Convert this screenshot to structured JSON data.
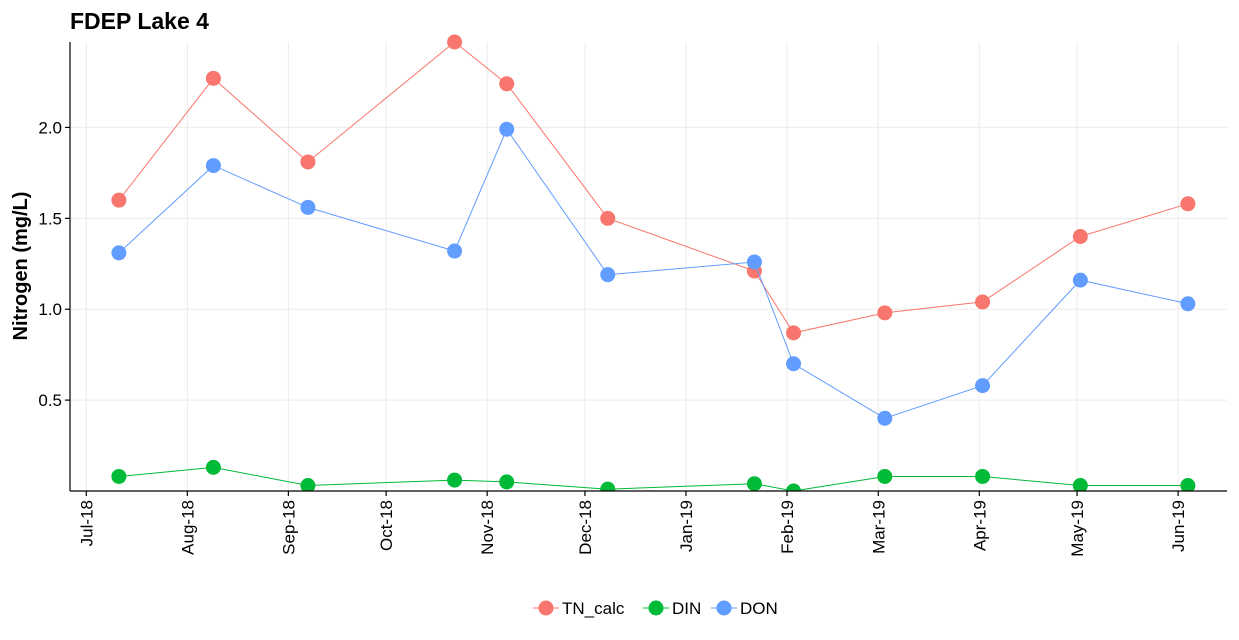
{
  "chart_data": {
    "type": "line",
    "title": "FDEP Lake 4",
    "xlabel": "",
    "ylabel": "Nitrogen (mg/L)",
    "x_tick_labels": [
      "Jul-18",
      "Aug-18",
      "Sep-18",
      "Oct-18",
      "Nov-18",
      "Dec-18",
      "Jan-19",
      "Feb-19",
      "Mar-19",
      "Apr-19",
      "May-19",
      "Jun-19"
    ],
    "x_tick_dates": [
      "2018-07-01",
      "2018-08-01",
      "2018-09-01",
      "2018-10-01",
      "2018-11-01",
      "2018-12-01",
      "2019-01-01",
      "2019-02-01",
      "2019-03-01",
      "2019-04-01",
      "2019-05-01",
      "2019-06-01"
    ],
    "y_ticks": [
      0.5,
      1.0,
      1.5,
      2.0
    ],
    "y_tick_labels": [
      "0.5",
      "1.0",
      "1.5",
      "2.0"
    ],
    "xlim": [
      "2018-06-26",
      "2019-06-16"
    ],
    "ylim": [
      0.0,
      2.47
    ],
    "grid": true,
    "legend_position": "bottom",
    "x": [
      "2018-07-11",
      "2018-08-09",
      "2018-09-07",
      "2018-10-22",
      "2018-11-07",
      "2018-12-08",
      "2019-01-22",
      "2019-02-03",
      "2019-03-03",
      "2019-04-02",
      "2019-05-02",
      "2019-06-04"
    ],
    "series": [
      {
        "name": "TN_calc",
        "color": "#F8766D",
        "points": [
          {
            "x": "2018-07-11",
            "y": 1.6
          },
          {
            "x": "2018-08-09",
            "y": 2.27
          },
          {
            "x": "2018-09-07",
            "y": 1.81
          },
          {
            "x": "2018-10-22",
            "y": 2.47
          },
          {
            "x": "2018-11-07",
            "y": 2.24
          },
          {
            "x": "2018-12-08",
            "y": 1.5
          },
          {
            "x": "2019-01-22",
            "y": 1.21
          },
          {
            "x": "2019-02-03",
            "y": 0.87
          },
          {
            "x": "2019-03-03",
            "y": 0.98
          },
          {
            "x": "2019-04-02",
            "y": 1.04
          },
          {
            "x": "2019-05-02",
            "y": 1.4
          },
          {
            "x": "2019-06-04",
            "y": 1.58
          }
        ]
      },
      {
        "name": "DIN",
        "color": "#00BA38",
        "points": [
          {
            "x": "2018-07-11",
            "y": 0.08
          },
          {
            "x": "2018-08-09",
            "y": 0.13
          },
          {
            "x": "2018-09-07",
            "y": 0.03
          },
          {
            "x": "2018-10-22",
            "y": 0.06
          },
          {
            "x": "2018-11-07",
            "y": 0.05
          },
          {
            "x": "2018-12-08",
            "y": 0.01
          },
          {
            "x": "2019-01-22",
            "y": 0.04
          },
          {
            "x": "2019-02-03",
            "y": 0.0
          },
          {
            "x": "2019-03-03",
            "y": 0.08
          },
          {
            "x": "2019-04-02",
            "y": 0.08
          },
          {
            "x": "2019-05-02",
            "y": 0.03
          },
          {
            "x": "2019-06-04",
            "y": 0.03
          }
        ]
      },
      {
        "name": "DON",
        "color": "#619CFF",
        "points": [
          {
            "x": "2018-07-11",
            "y": 1.31
          },
          {
            "x": "2018-08-09",
            "y": 1.79
          },
          {
            "x": "2018-09-07",
            "y": 1.56
          },
          {
            "x": "2018-10-22",
            "y": 1.32
          },
          {
            "x": "2018-11-07",
            "y": 1.99
          },
          {
            "x": "2018-12-08",
            "y": 1.19
          },
          {
            "x": "2019-01-22",
            "y": 1.26
          },
          {
            "x": "2019-02-03",
            "y": 0.7
          },
          {
            "x": "2019-03-03",
            "y": 0.4
          },
          {
            "x": "2019-04-02",
            "y": 0.58
          },
          {
            "x": "2019-05-02",
            "y": 1.16
          },
          {
            "x": "2019-06-04",
            "y": 1.03
          }
        ]
      }
    ]
  }
}
